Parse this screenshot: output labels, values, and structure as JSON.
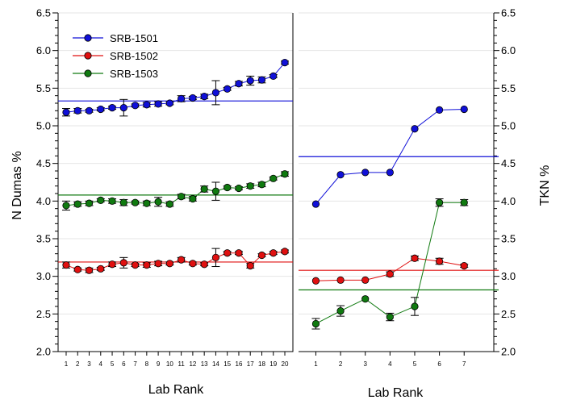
{
  "colors": {
    "blue": "#1010d8",
    "red": "#e01010",
    "green": "#107a10",
    "axis": "#000000"
  },
  "chart_data": [
    {
      "type": "scatter",
      "ylabel": "N Dumas  %",
      "xlabel": "Lab Rank",
      "ylim": [
        2.0,
        6.5
      ],
      "yticks": [
        "2.0",
        "2.5",
        "3.0",
        "3.5",
        "4.0",
        "4.5",
        "5.0",
        "5.5",
        "6.0",
        "6.5"
      ],
      "x": [
        1,
        2,
        3,
        4,
        5,
        6,
        7,
        8,
        9,
        10,
        11,
        12,
        13,
        14,
        15,
        16,
        17,
        18,
        19,
        20
      ],
      "xtick_labels": [
        "1",
        "2",
        "3",
        "4",
        "5",
        "6",
        "7",
        "8",
        "9",
        "10",
        "11",
        "12",
        "13",
        "14",
        "15",
        "16",
        "17",
        "18",
        "19",
        "20"
      ],
      "legend_position": "top-left",
      "series": [
        {
          "name": "SRB-1501",
          "color_key": "blue",
          "values": [
            5.18,
            5.2,
            5.2,
            5.22,
            5.24,
            5.24,
            5.27,
            5.28,
            5.29,
            5.3,
            5.36,
            5.37,
            5.39,
            5.44,
            5.49,
            5.56,
            5.6,
            5.61,
            5.66,
            5.84
          ],
          "errors": [
            0.05,
            0.03,
            0.02,
            0.02,
            0.02,
            0.11,
            0.02,
            0.03,
            0.03,
            0.02,
            0.04,
            0.02,
            0.03,
            0.16,
            0.02,
            0.03,
            0.06,
            0.04,
            0.02,
            0.02
          ],
          "reference": 5.33
        },
        {
          "name": "SRB-1502",
          "color_key": "red",
          "values": [
            3.15,
            3.09,
            3.08,
            3.1,
            3.16,
            3.18,
            3.15,
            3.15,
            3.17,
            3.17,
            3.22,
            3.17,
            3.16,
            3.25,
            3.31,
            3.31,
            3.14,
            3.28,
            3.31,
            3.33
          ],
          "errors": [
            0.04,
            0.02,
            0.03,
            0.02,
            0.03,
            0.07,
            0.02,
            0.03,
            0.03,
            0.02,
            0.03,
            0.02,
            0.02,
            0.12,
            0.02,
            0.02,
            0.03,
            0.02,
            0.02,
            0.02
          ],
          "reference": 3.19
        },
        {
          "name": "SRB-1503",
          "color_key": "green",
          "values": [
            3.94,
            3.96,
            3.97,
            4.01,
            4.0,
            3.98,
            3.98,
            3.97,
            3.99,
            3.96,
            4.06,
            4.03,
            4.16,
            4.13,
            4.18,
            4.17,
            4.2,
            4.22,
            4.3,
            4.36
          ],
          "errors": [
            0.06,
            0.03,
            0.03,
            0.02,
            0.03,
            0.04,
            0.02,
            0.03,
            0.06,
            0.03,
            0.03,
            0.03,
            0.04,
            0.12,
            0.02,
            0.02,
            0.03,
            0.03,
            0.02,
            0.03
          ],
          "reference": 4.08
        }
      ]
    },
    {
      "type": "line",
      "ylabel": "TKN  %",
      "xlabel": "Lab Rank",
      "ylim": [
        2.0,
        6.5
      ],
      "yticks": [
        "2.0",
        "2.5",
        "3.0",
        "3.5",
        "4.0",
        "4.5",
        "5.0",
        "5.5",
        "6.0",
        "6.5"
      ],
      "x": [
        1,
        2,
        3,
        4,
        5,
        6,
        7
      ],
      "xtick_labels": [
        "1",
        "2",
        "3",
        "4",
        "5",
        "6",
        "7"
      ],
      "series": [
        {
          "name": "SRB-1501",
          "color_key": "blue",
          "values": [
            3.96,
            4.35,
            4.38,
            4.38,
            4.96,
            5.21,
            5.22
          ],
          "errors": [
            0.0,
            0.0,
            0.0,
            0.0,
            0.0,
            0.0,
            0.0
          ],
          "reference": 4.59
        },
        {
          "name": "SRB-1502",
          "color_key": "red",
          "values": [
            2.94,
            2.95,
            2.95,
            3.03,
            3.24,
            3.2,
            3.14
          ],
          "errors": [
            0.0,
            0.0,
            0.0,
            0.03,
            0.03,
            0.04,
            0.02
          ],
          "reference": 3.08
        },
        {
          "name": "SRB-1503",
          "color_key": "green",
          "values": [
            2.37,
            2.54,
            2.7,
            2.46,
            2.6,
            3.98,
            3.98
          ],
          "errors": [
            0.07,
            0.07,
            0.0,
            0.05,
            0.12,
            0.05,
            0.04
          ],
          "reference": 2.82
        }
      ]
    }
  ]
}
